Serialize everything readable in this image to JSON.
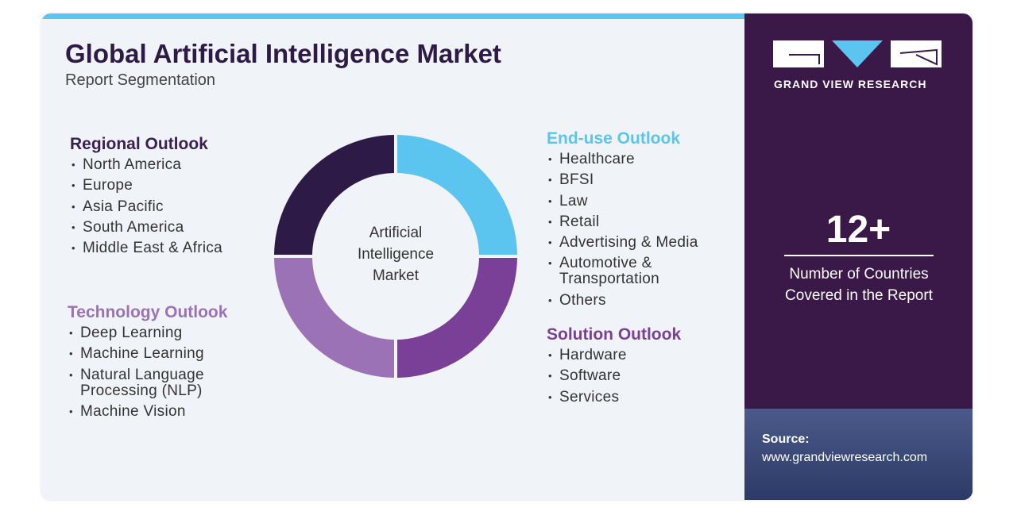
{
  "header": {
    "title": "Global Artificial Intelligence Market",
    "subtitle": "Report Segmentation"
  },
  "center_label": [
    "Artificial",
    "Intelligence",
    "Market"
  ],
  "segments": [
    {
      "title": "Regional Outlook",
      "items": [
        "North America",
        "Europe",
        "Asia Pacific",
        "South America",
        "Middle East & Africa"
      ]
    },
    {
      "title": "Technology Outlook",
      "items": [
        "Deep Learning",
        "Machine Learning",
        "Natural Language Processing (NLP)",
        "Machine Vision"
      ]
    },
    {
      "title": "End-use Outlook",
      "items": [
        "Healthcare",
        "BFSI",
        "Law",
        "Retail",
        "Advertising & Media",
        "Automotive & Transportation",
        "Others"
      ]
    },
    {
      "title": "Solution Outlook",
      "items": [
        "Hardware",
        "Software",
        "Services"
      ]
    }
  ],
  "brand": "GRAND VIEW RESEARCH",
  "stat": {
    "value": "12+",
    "label": "Number of Countries Covered in the Report"
  },
  "source": {
    "label": "Source:",
    "url": "www.grandviewresearch.com"
  }
}
